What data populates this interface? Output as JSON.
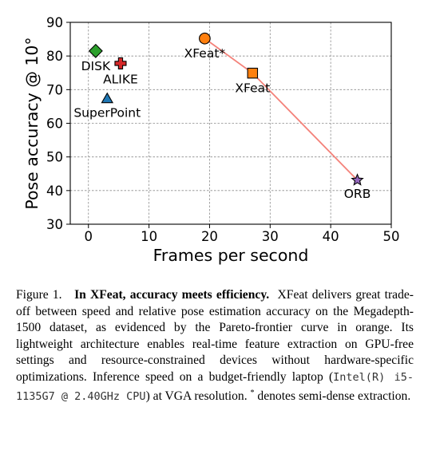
{
  "chart_data": {
    "type": "scatter",
    "xlabel": "Frames per second",
    "ylabel": "Pose accuracy @ 10°",
    "xlim": [
      -3,
      50
    ],
    "ylim": [
      30,
      90
    ],
    "xticks": [
      0,
      10,
      20,
      30,
      40,
      50
    ],
    "yticks": [
      30,
      40,
      50,
      60,
      70,
      80,
      90
    ],
    "xtick_labels": [
      "0",
      "10",
      "20",
      "30",
      "40",
      "50"
    ],
    "ytick_labels": [
      "30",
      "40",
      "50",
      "60",
      "70",
      "80",
      "90"
    ],
    "grid": true,
    "points": [
      {
        "label": "DISK",
        "x": 1.2,
        "y": 81.5,
        "marker": "diamond",
        "color": "#2ca02c"
      },
      {
        "label": "ALIKE",
        "x": 5.3,
        "y": 77.8,
        "marker": "plus",
        "color": "#d62728"
      },
      {
        "label": "SuperPoint",
        "x": 3.1,
        "y": 67.3,
        "marker": "triangle",
        "color": "#1f77b4"
      },
      {
        "label": "XFeat*",
        "x": 19.2,
        "y": 85.2,
        "marker": "circle",
        "color": "#ff7f0e"
      },
      {
        "label": "XFeat",
        "x": 27.1,
        "y": 74.9,
        "marker": "square",
        "color": "#ff7f0e"
      },
      {
        "label": "ORB",
        "x": 44.4,
        "y": 43.1,
        "marker": "star",
        "color": "#9467bd"
      }
    ],
    "pareto_frontier": {
      "color": "#f4827a",
      "x": [
        19.2,
        27.1,
        44.4
      ],
      "y": [
        85.2,
        74.9,
        43.1
      ]
    }
  },
  "caption": {
    "figure_label": "Figure 1.",
    "title": "In XFeat, accuracy meets efficiency.",
    "body_1": "XFeat delivers great trade-off between speed and relative pose estimation accuracy on the Megadepth-1500 dataset, as evidenced by the Pareto-frontier curve in orange. Its lightweight architecture enables real-time feature extraction on GPU-free settings and resource-constrained devices without hardware-specific optimizations. Inference speed on a budget-friendly laptop (",
    "cpu": "Intel(R) i5-1135G7 @ 2.40GHz CPU",
    "body_2": ") at VGA resolution. ",
    "star": "*",
    "body_3": " denotes semi-dense extraction."
  }
}
